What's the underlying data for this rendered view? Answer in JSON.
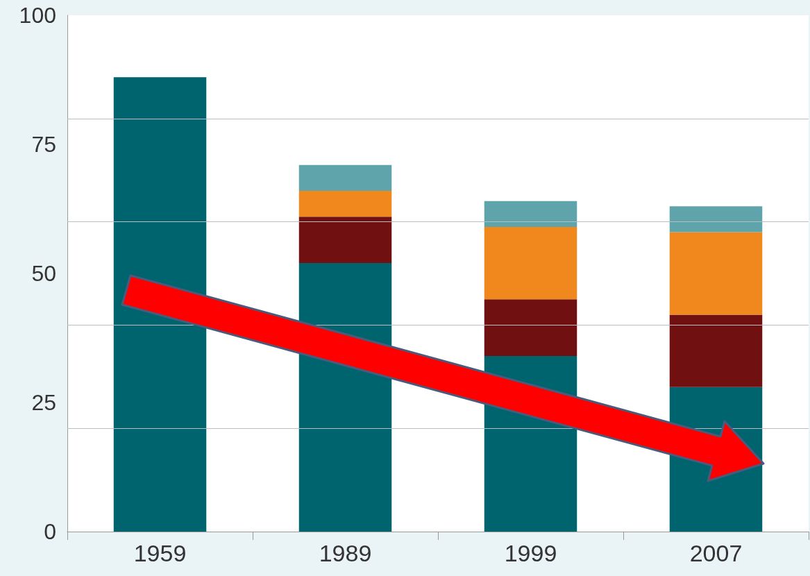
{
  "chart_data": {
    "type": "bar",
    "stacked": true,
    "categories": [
      "1959",
      "1989",
      "1999",
      "2007"
    ],
    "series": [
      {
        "color": "#00646e",
        "values": [
          88,
          52,
          34,
          28
        ]
      },
      {
        "color": "#701010",
        "values": [
          null,
          9,
          11,
          14
        ]
      },
      {
        "color": "#f0881e",
        "values": [
          null,
          5,
          14,
          16
        ]
      },
      {
        "color": "#5fa4ab",
        "values": [
          null,
          5,
          5,
          5
        ]
      }
    ],
    "ylim": [
      0,
      100
    ],
    "yticks": [
      0,
      {
        "value": 20,
        "label": null
      },
      25,
      {
        "value": 40,
        "label": null
      },
      50,
      {
        "value": 60,
        "label": null
      },
      75,
      {
        "value": 80,
        "label": null
      },
      100
    ],
    "grid": "y"
  }
}
